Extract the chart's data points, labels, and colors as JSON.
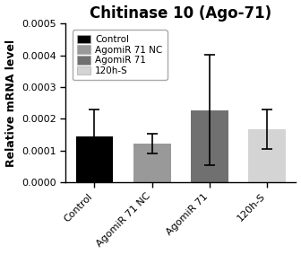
{
  "title": "Chitinase 10 (Ago-71)",
  "ylabel": "Relative mRNA level",
  "categories": [
    "Control",
    "AgomiR 71 NC",
    "AgomiR 71",
    "120h-S"
  ],
  "values": [
    0.000145,
    0.000122,
    0.000228,
    0.000168
  ],
  "errors": [
    8.5e-05,
    3e-05,
    0.000175,
    6.2e-05
  ],
  "bar_colors": [
    "#000000",
    "#999999",
    "#707070",
    "#d4d4d4"
  ],
  "legend_labels": [
    "Control",
    "AgomiR 71 NC",
    "AgomiR 71",
    "120h-S"
  ],
  "legend_colors": [
    "#000000",
    "#999999",
    "#707070",
    "#d4d4d4"
  ],
  "ylim": [
    0,
    0.0005
  ],
  "yticks": [
    0.0,
    0.0001,
    0.0002,
    0.0003,
    0.0004,
    0.0005
  ],
  "background_color": "#ffffff",
  "title_fontsize": 12,
  "ylabel_fontsize": 9,
  "tick_fontsize": 8,
  "legend_fontsize": 7.5,
  "bar_width": 0.65
}
